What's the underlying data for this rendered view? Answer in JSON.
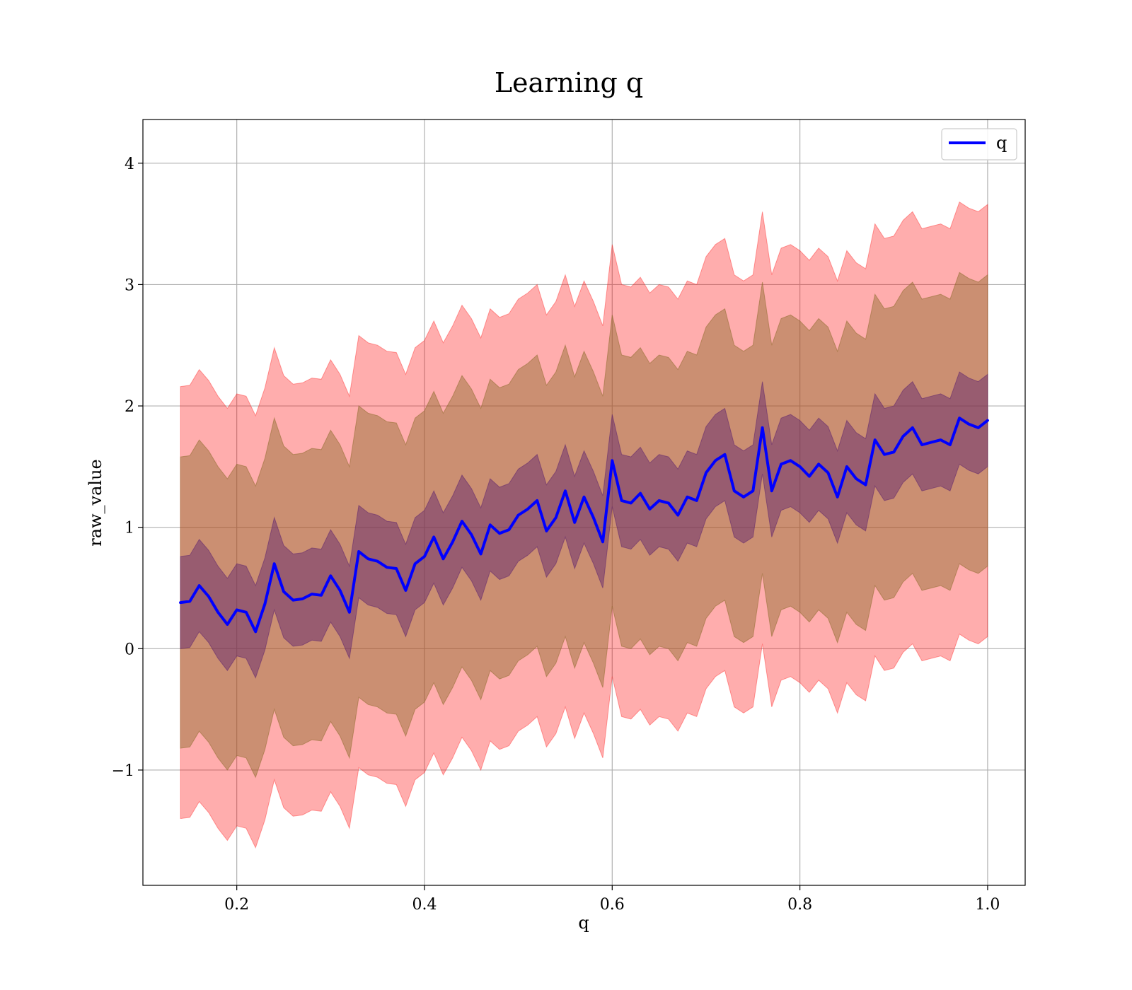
{
  "chart_data": {
    "type": "line",
    "title": "Learning q",
    "xlabel": "q",
    "ylabel": "raw_value",
    "xlim": [
      0.1,
      1.04
    ],
    "ylim": [
      -1.95,
      4.36
    ],
    "xticks": [
      0.2,
      0.4,
      0.6,
      0.8,
      1.0
    ],
    "xtick_labels": [
      "0.2",
      "0.4",
      "0.6",
      "0.8",
      "1.0"
    ],
    "yticks": [
      -1,
      0,
      1,
      2,
      3,
      4
    ],
    "ytick_labels": [
      "−1",
      "0",
      "1",
      "2",
      "3",
      "4"
    ],
    "grid": true,
    "legend": {
      "position": "top-right",
      "entries": [
        "q"
      ]
    },
    "colors": {
      "line": "#0000ff",
      "band_outer": "#ff0000",
      "band_middle": "#8c6a2a",
      "band_inner": "#5a1f6e"
    },
    "band_half_widths": {
      "inner": 0.38,
      "middle": 1.2,
      "outer": 1.78
    },
    "series": [
      {
        "name": "q",
        "x": [
          0.14,
          0.15,
          0.16,
          0.17,
          0.18,
          0.19,
          0.2,
          0.21,
          0.22,
          0.23,
          0.24,
          0.25,
          0.26,
          0.27,
          0.28,
          0.29,
          0.3,
          0.31,
          0.32,
          0.33,
          0.34,
          0.35,
          0.36,
          0.37,
          0.38,
          0.39,
          0.4,
          0.41,
          0.42,
          0.43,
          0.44,
          0.45,
          0.46,
          0.47,
          0.48,
          0.49,
          0.5,
          0.51,
          0.52,
          0.53,
          0.54,
          0.55,
          0.56,
          0.57,
          0.58,
          0.59,
          0.6,
          0.61,
          0.62,
          0.63,
          0.64,
          0.65,
          0.66,
          0.67,
          0.68,
          0.69,
          0.7,
          0.71,
          0.72,
          0.73,
          0.74,
          0.75,
          0.76,
          0.77,
          0.78,
          0.79,
          0.8,
          0.81,
          0.82,
          0.83,
          0.84,
          0.85,
          0.86,
          0.87,
          0.88,
          0.89,
          0.9,
          0.91,
          0.92,
          0.93,
          0.94,
          0.95,
          0.96,
          0.97,
          0.98,
          0.99,
          1.0
        ],
        "y": [
          0.38,
          0.39,
          0.52,
          0.43,
          0.3,
          0.2,
          0.32,
          0.3,
          0.14,
          0.37,
          0.7,
          0.47,
          0.4,
          0.41,
          0.45,
          0.44,
          0.6,
          0.48,
          0.3,
          0.8,
          0.74,
          0.72,
          0.67,
          0.66,
          0.48,
          0.7,
          0.76,
          0.92,
          0.74,
          0.88,
          1.05,
          0.94,
          0.78,
          1.02,
          0.95,
          0.98,
          1.1,
          1.15,
          1.22,
          0.97,
          1.08,
          1.3,
          1.04,
          1.25,
          1.08,
          0.88,
          1.55,
          1.22,
          1.2,
          1.28,
          1.15,
          1.22,
          1.2,
          1.1,
          1.25,
          1.22,
          1.45,
          1.55,
          1.6,
          1.3,
          1.25,
          1.3,
          1.82,
          1.3,
          1.52,
          1.55,
          1.5,
          1.42,
          1.52,
          1.45,
          1.25,
          1.5,
          1.4,
          1.35,
          1.72,
          1.6,
          1.62,
          1.75,
          1.82,
          1.68,
          1.7,
          1.72,
          1.68,
          1.9,
          1.85,
          1.82,
          1.88
        ]
      }
    ]
  }
}
